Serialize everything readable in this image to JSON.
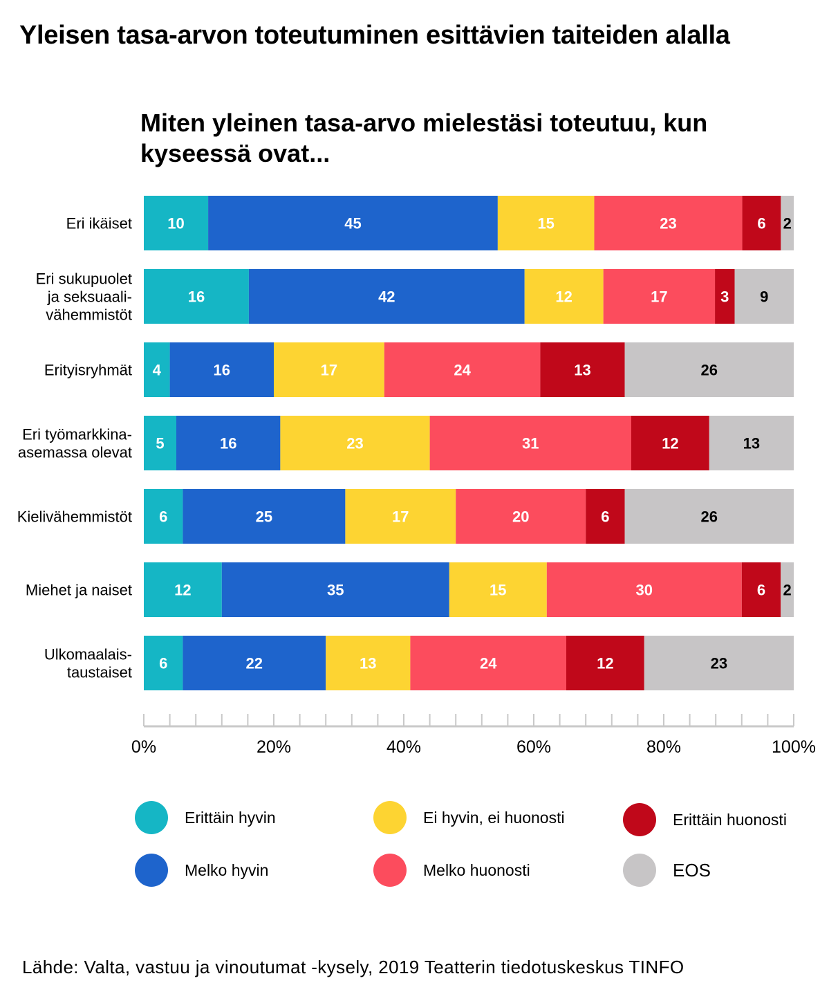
{
  "title": "Yleisen tasa-arvon toteutuminen esittävien taiteiden alalla",
  "source": "Lähde: Valta, vastuu ja vinoutumat -kysely, 2019 Teatterin tiedotuskeskus TINFO",
  "colors": {
    "erittain_hyvin": "#15B6C5",
    "melko_hyvin": "#1E64CC",
    "ei_hyvin_ei_huonosti": "#FDD432",
    "melko_huonosti": "#FC4C5D",
    "erittain_huonosti": "#C0081A",
    "eos": "#C7C5C6"
  },
  "legend": {
    "items": [
      {
        "label": "Erittäin hyvin",
        "color": "#15B6C5"
      },
      {
        "label": "Ei hyvin, ei huonosti",
        "color": "#FDD432"
      },
      {
        "label": "Erittäin huonosti",
        "color": "#C0081A"
      },
      {
        "label": "Melko hyvin",
        "color": "#1E64CC"
      },
      {
        "label": "Melko huonosti",
        "color": "#FC4C5D"
      },
      {
        "label": "EOS",
        "color": "#C7C5C6"
      }
    ]
  },
  "chart_data": {
    "type": "bar",
    "orientation": "horizontal",
    "stacked": true,
    "title": "Miten yleinen tasa-arvo mielestäsi toteutuu, kun kyseessä ovat...",
    "xlabel": "",
    "ylabel": "",
    "xlim": [
      0,
      100
    ],
    "x_ticks": [
      "0%",
      "20%",
      "40%",
      "60%",
      "80%",
      "100%"
    ],
    "categories": [
      [
        "Eri ikäiset"
      ],
      [
        "Eri sukupuolet",
        "ja seksuaali-",
        "vähemmistöt"
      ],
      [
        "Erityisryhmät"
      ],
      [
        "Eri työmarkkina-",
        "asemassa olevat"
      ],
      [
        "Kielivähemmistöt"
      ],
      [
        "Miehet ja naiset"
      ],
      [
        "Ulkomaalais-",
        "taustaiset"
      ]
    ],
    "series": [
      {
        "name": "Erittäin hyvin",
        "color": "#15B6C5",
        "label_color": "#ffffff",
        "values": [
          10,
          16,
          4,
          5,
          6,
          12,
          6
        ]
      },
      {
        "name": "Melko hyvin",
        "color": "#1E64CC",
        "label_color": "#ffffff",
        "values": [
          45,
          42,
          16,
          16,
          25,
          35,
          22
        ]
      },
      {
        "name": "Ei hyvin, ei huonosti",
        "color": "#FDD432",
        "label_color": "#ffffff",
        "values": [
          15,
          12,
          17,
          23,
          17,
          15,
          13
        ]
      },
      {
        "name": "Melko huonosti",
        "color": "#FC4C5D",
        "label_color": "#ffffff",
        "values": [
          23,
          17,
          24,
          31,
          20,
          30,
          24
        ]
      },
      {
        "name": "Erittäin huonosti",
        "color": "#C0081A",
        "label_color": "#ffffff",
        "values": [
          6,
          3,
          13,
          12,
          6,
          6,
          12
        ]
      },
      {
        "name": "EOS",
        "color": "#C7C5C6",
        "label_color": "#000000",
        "values": [
          2,
          9,
          26,
          13,
          26,
          2,
          23
        ]
      }
    ]
  }
}
